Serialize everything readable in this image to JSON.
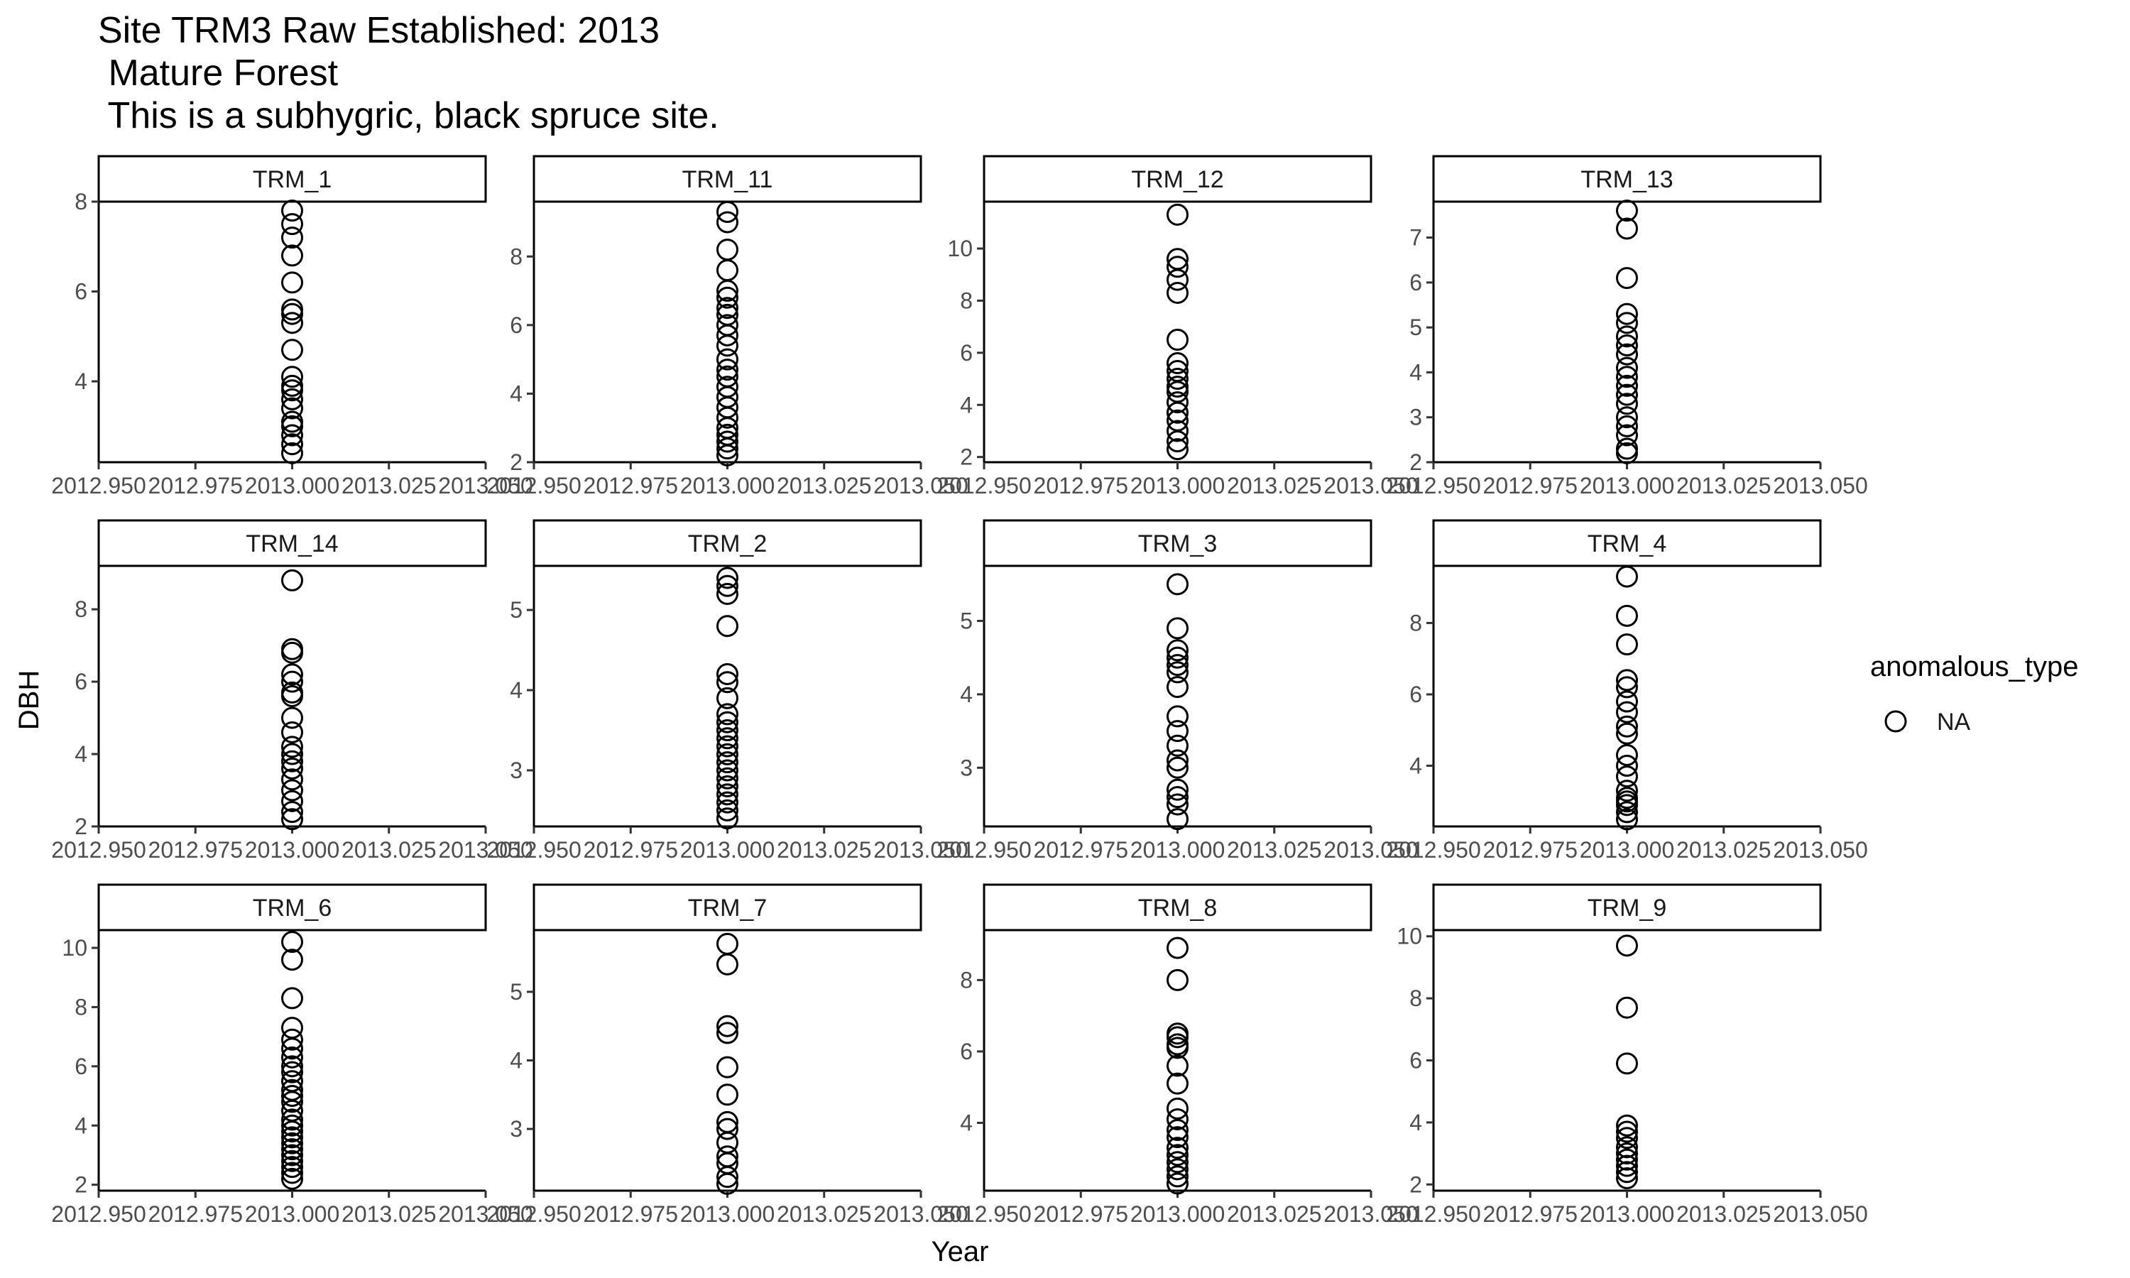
{
  "chart_data": {
    "type": "scatter",
    "title_lines": [
      "Site TRM3 Raw Established: 2013",
      " Mature Forest",
      " This is a subhygric, black spruce site."
    ],
    "xlabel": "Year",
    "ylabel": "DBH",
    "xlim": [
      2012.95,
      2013.05
    ],
    "x_ticks": [
      2012.95,
      2012.975,
      2013.0,
      2013.025,
      2013.05
    ],
    "x_tick_labels": [
      "2012.950",
      "2012.975",
      "2013.000",
      "2013.025",
      "2013.050"
    ],
    "marker": "open-circle",
    "marker_color": "#000000",
    "legend": {
      "title": "anomalous_type",
      "entries": [
        "NA"
      ],
      "position": "right"
    },
    "grid": false,
    "panels": [
      {
        "label": "TRM_1",
        "x": 2013,
        "ylim": [
          2.2,
          8.0
        ],
        "y_ticks": [
          4,
          6,
          8
        ],
        "y": [
          7.8,
          7.5,
          7.2,
          6.8,
          6.2,
          5.6,
          5.5,
          5.3,
          4.7,
          4.1,
          3.9,
          3.8,
          3.6,
          3.4,
          3.1,
          3.0,
          2.8,
          2.6,
          2.4
        ]
      },
      {
        "label": "TRM_11",
        "x": 2013,
        "ylim": [
          2.0,
          9.6
        ],
        "y_ticks": [
          2,
          4,
          6,
          8
        ],
        "y": [
          9.3,
          9.0,
          8.2,
          7.6,
          7.0,
          6.8,
          6.5,
          6.3,
          6.0,
          5.7,
          5.4,
          5.0,
          4.7,
          4.5,
          4.2,
          3.9,
          3.6,
          3.3,
          3.0,
          2.8,
          2.6,
          2.4,
          2.2
        ]
      },
      {
        "label": "TRM_12",
        "x": 2013,
        "ylim": [
          1.8,
          11.8
        ],
        "y_ticks": [
          2,
          4,
          6,
          8,
          10
        ],
        "y": [
          11.3,
          9.6,
          9.3,
          8.8,
          8.3,
          6.5,
          5.6,
          5.3,
          5.0,
          4.7,
          4.5,
          4.1,
          3.7,
          3.4,
          3.0,
          2.6,
          2.3
        ]
      },
      {
        "label": "TRM_13",
        "x": 2013,
        "ylim": [
          2.0,
          7.8
        ],
        "y_ticks": [
          2,
          3,
          4,
          5,
          6,
          7
        ],
        "y": [
          7.6,
          7.2,
          6.1,
          5.3,
          5.1,
          4.8,
          4.6,
          4.4,
          4.1,
          3.9,
          3.7,
          3.5,
          3.3,
          3.0,
          2.8,
          2.6,
          2.3,
          2.2
        ]
      },
      {
        "label": "TRM_14",
        "x": 2013,
        "ylim": [
          2.0,
          9.2
        ],
        "y_ticks": [
          2,
          4,
          6,
          8
        ],
        "y": [
          8.8,
          6.9,
          6.8,
          6.2,
          6.0,
          5.7,
          5.6,
          5.0,
          4.6,
          4.2,
          4.0,
          3.8,
          3.6,
          3.3,
          3.0,
          2.7,
          2.4,
          2.2
        ]
      },
      {
        "label": "TRM_2",
        "x": 2013,
        "ylim": [
          2.3,
          5.55
        ],
        "y_ticks": [
          3,
          4,
          5
        ],
        "y": [
          5.4,
          5.3,
          5.2,
          4.8,
          4.2,
          4.1,
          3.9,
          3.7,
          3.6,
          3.5,
          3.4,
          3.3,
          3.2,
          3.1,
          3.0,
          2.9,
          2.8,
          2.7,
          2.6,
          2.5,
          2.4
        ]
      },
      {
        "label": "TRM_3",
        "x": 2013,
        "ylim": [
          2.2,
          5.75
        ],
        "y_ticks": [
          3,
          4,
          5
        ],
        "y": [
          5.5,
          4.9,
          4.6,
          4.5,
          4.4,
          4.3,
          4.1,
          3.7,
          3.5,
          3.3,
          3.1,
          3.0,
          2.7,
          2.6,
          2.5,
          2.3
        ]
      },
      {
        "label": "TRM_4",
        "x": 2013,
        "ylim": [
          2.3,
          9.6
        ],
        "y_ticks": [
          4,
          6,
          8
        ],
        "y": [
          9.3,
          8.2,
          7.4,
          6.4,
          6.2,
          5.8,
          5.5,
          5.1,
          4.9,
          4.3,
          4.0,
          3.7,
          3.3,
          3.1,
          3.0,
          2.9,
          2.7,
          2.5
        ]
      },
      {
        "label": "TRM_6",
        "x": 2013,
        "ylim": [
          1.8,
          10.6
        ],
        "y_ticks": [
          2,
          4,
          6,
          8,
          10
        ],
        "y": [
          10.2,
          9.6,
          8.3,
          7.3,
          6.9,
          6.6,
          6.3,
          6.0,
          5.8,
          5.5,
          5.2,
          5.0,
          4.8,
          4.5,
          4.2,
          4.0,
          3.8,
          3.6,
          3.4,
          3.2,
          3.0,
          2.8,
          2.6,
          2.4,
          2.2
        ]
      },
      {
        "label": "TRM_7",
        "x": 2013,
        "ylim": [
          2.1,
          5.9
        ],
        "y_ticks": [
          3,
          4,
          5
        ],
        "y": [
          5.7,
          5.4,
          4.5,
          4.4,
          3.9,
          3.5,
          3.1,
          3.0,
          2.8,
          2.6,
          2.5,
          2.3,
          2.2
        ]
      },
      {
        "label": "TRM_8",
        "x": 2013,
        "ylim": [
          2.1,
          9.4
        ],
        "y_ticks": [
          4,
          6,
          8
        ],
        "y": [
          8.9,
          8.0,
          6.5,
          6.4,
          6.2,
          6.1,
          5.6,
          5.1,
          4.4,
          4.1,
          3.8,
          3.6,
          3.3,
          3.1,
          2.9,
          2.7,
          2.5,
          2.3
        ]
      },
      {
        "label": "TRM_9",
        "x": 2013,
        "ylim": [
          1.8,
          10.2
        ],
        "y_ticks": [
          2,
          4,
          6,
          8,
          10
        ],
        "y": [
          9.7,
          7.7,
          5.9,
          3.9,
          3.7,
          3.5,
          3.2,
          3.0,
          2.8,
          2.6,
          2.4,
          2.2
        ]
      }
    ]
  }
}
